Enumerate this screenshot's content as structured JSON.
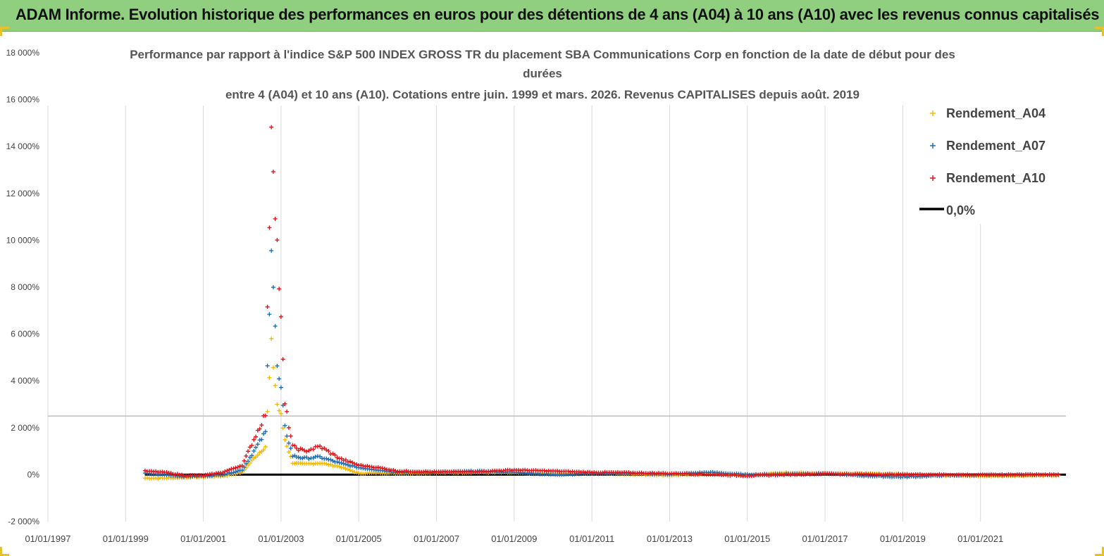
{
  "banner": {
    "title": "ADAM Informe. Evolution historique des performances en euros pour des détentions de 4 ans (A04) à 10 ans (A10) avec les revenus connus capitalisés"
  },
  "colors": {
    "banner_bg": "#8fcf7f",
    "A04": "#f5b800",
    "A07": "#1f6fb5",
    "A10": "#e3141b",
    "zero_line": "#000000",
    "accent_corners": "#e8c12a"
  },
  "chart_data": {
    "type": "scatter",
    "title_lines": [
      "Performance par rapport à l'indice S&P 500 INDEX GROSS TR  du placement SBA Communications Corp en fonction de la date de début pour des",
      "durées",
      "entre 4 (A04) et 10 ans (A10). Cotations entre juin. 1999 et mars. 2026. Revenus CAPITALISES depuis août. 2019"
    ],
    "y_ticks": [
      "-2 000%",
      "0%",
      "2 000%",
      "4 000%",
      "6 000%",
      "8 000%",
      "10 000%",
      "12 000%",
      "14 000%",
      "16 000%",
      "18 000%"
    ],
    "ylim": [
      -2000,
      18000
    ],
    "x_ticks": [
      "01/01/1997",
      "01/01/1999",
      "01/01/2001",
      "01/01/2003",
      "01/01/2005",
      "01/01/2007",
      "01/01/2009",
      "01/01/2011",
      "01/01/2013",
      "01/01/2015",
      "01/01/2017",
      "01/01/2019",
      "01/01/2021"
    ],
    "xlim": [
      1997.0,
      2023.2
    ],
    "grid": "vertical",
    "horizontal_reference_line": 2500,
    "legend_position": "right",
    "legend": [
      "Rendement_A04",
      "Rendement_A07",
      "Rendement_A10",
      "0,0%"
    ],
    "zero_line": {
      "name": "0,0%",
      "x": [
        1999.5,
        2023.2
      ],
      "y": [
        0,
        0
      ]
    },
    "series": [
      {
        "name": "Rendement_A04",
        "x": [
          1999.5,
          2000.0,
          2000.5,
          2001.0,
          2001.5,
          2002.0,
          2002.3,
          2002.6,
          2002.75,
          2002.9,
          2003.0,
          2003.1,
          2003.3,
          2003.6,
          2004.0,
          2004.5,
          2005.0,
          2005.5,
          2006.0,
          2007.0,
          2008.0,
          2009.0,
          2010.0,
          2011.0,
          2012.0,
          2013.0,
          2014.0,
          2015.0,
          2016.0,
          2017.0,
          2018.0,
          2019.0,
          2020.0,
          2021.0,
          2022.0,
          2023.0
        ],
        "y": [
          -150,
          -150,
          -120,
          -100,
          -60,
          100,
          700,
          1200,
          5500,
          3000,
          2500,
          1500,
          500,
          450,
          500,
          350,
          50,
          80,
          50,
          80,
          100,
          80,
          30,
          60,
          20,
          -30,
          20,
          -20,
          80,
          60,
          40,
          20,
          -30,
          -60,
          -40,
          -30
        ]
      },
      {
        "name": "Rendement_A07",
        "x": [
          1999.5,
          2000.0,
          2000.5,
          2001.0,
          2001.5,
          2002.0,
          2002.3,
          2002.6,
          2002.75,
          2002.9,
          2003.0,
          2003.1,
          2003.3,
          2003.6,
          2004.0,
          2004.5,
          2005.0,
          2005.5,
          2006.0,
          2007.0,
          2008.0,
          2009.0,
          2010.0,
          2011.0,
          2012.0,
          2013.0,
          2014.0,
          2015.0,
          2016.0,
          2017.0,
          2018.0,
          2019.0,
          2020.0,
          2021.0,
          2022.0,
          2023.0
        ],
        "y": [
          50,
          0,
          -80,
          -60,
          0,
          200,
          1000,
          1800,
          10000,
          4500,
          3600,
          2000,
          800,
          700,
          750,
          500,
          300,
          200,
          100,
          100,
          150,
          100,
          0,
          50,
          50,
          20,
          100,
          0,
          30,
          50,
          -50,
          -100,
          -40,
          -20,
          0,
          0
        ]
      },
      {
        "name": "Rendement_A10",
        "x": [
          1999.5,
          2000.0,
          2000.5,
          2001.0,
          2001.5,
          2002.0,
          2002.3,
          2002.6,
          2002.75,
          2002.9,
          2003.0,
          2003.1,
          2003.3,
          2003.6,
          2004.0,
          2004.5,
          2005.0,
          2005.5,
          2006.0,
          2007.0,
          2008.0,
          2009.0,
          2010.0,
          2011.0,
          2012.0,
          2013.0,
          2014.0,
          2015.0,
          2016.0,
          2017.0,
          2018.0,
          2019.0,
          2020.0,
          2021.0,
          2022.0,
          2023.0
        ],
        "y": [
          150,
          100,
          -30,
          -40,
          100,
          400,
          1500,
          2600,
          15200,
          9800,
          6500,
          3000,
          1200,
          1000,
          1200,
          700,
          400,
          300,
          150,
          120,
          120,
          200,
          150,
          100,
          80,
          50,
          20,
          -50,
          0,
          40,
          20,
          10,
          0,
          -20,
          -10,
          0
        ]
      }
    ]
  }
}
